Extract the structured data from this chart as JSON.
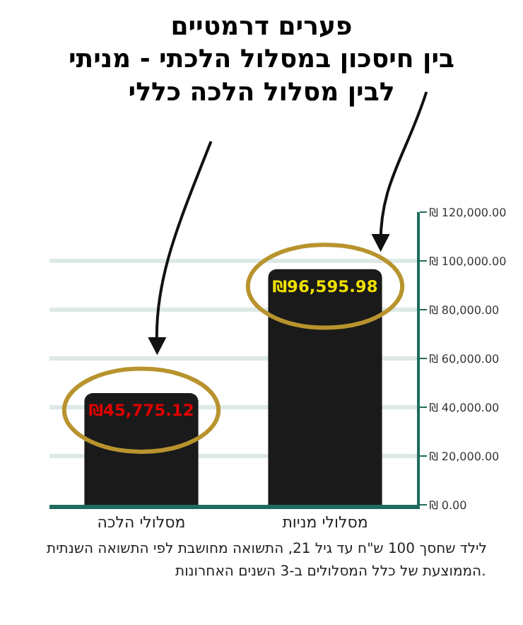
{
  "chart_data": {
    "type": "bar",
    "title": "פערים דרמטיים\nבין חיסכון במסלול הלכתי - מניתי\nלבין מסלול הלכה כללי",
    "categories": [
      "מסלולי הלכה",
      "מסלולי מניות"
    ],
    "values": [
      45775.12,
      96595.98
    ],
    "color": "#1a1a1a",
    "value_labels": [
      "₪45,775.12",
      "₪96,595.98"
    ],
    "ylim": [
      0,
      120000
    ],
    "yticks": [
      {
        "value": 0,
        "label": "₪ 0.00"
      },
      {
        "value": 20000,
        "label": "₪ 20,000.00"
      },
      {
        "value": 40000,
        "label": "₪ 40,000.00"
      },
      {
        "value": 60000,
        "label": "₪ 60,000.00"
      },
      {
        "value": 80000,
        "label": "₪ 80,000.00"
      },
      {
        "value": 100000,
        "label": "₪ 100,000.00"
      },
      {
        "value": 120000,
        "label": "₪ 120,000.00"
      }
    ],
    "grid": "y",
    "annotations": [
      "לילד שחסך 100 ש\"ח עד גיל 21, התשואה מחושבת לפי התשואה השנתית",
      "הממוצעת של כלל המסלולים ב-3 השנים האחרונות."
    ]
  }
}
